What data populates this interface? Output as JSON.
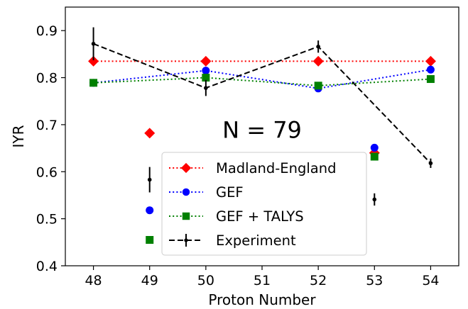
{
  "chart_data": {
    "type": "scatter",
    "xlabel": "Proton Number",
    "ylabel": "IYR",
    "ylim": [
      0.4,
      0.95
    ],
    "x_categories": [
      "48",
      "49",
      "50",
      "51",
      "52",
      "53",
      "54"
    ],
    "y_ticks": [
      "0.4",
      "0.5",
      "0.6",
      "0.7",
      "0.8",
      "0.9"
    ],
    "annotation": "N = 79",
    "grid": false,
    "legend_position": "lower-center",
    "series": [
      {
        "name": "Madland-England",
        "color": "#ff0000",
        "marker": "diamond",
        "line": "dotted",
        "line_x": [
          48,
          50,
          52,
          54
        ],
        "line_y": [
          0.835,
          0.835,
          0.835,
          0.835
        ],
        "points": [
          {
            "x": 48,
            "y": 0.835
          },
          {
            "x": 49,
            "y": 0.682
          },
          {
            "x": 50,
            "y": 0.835
          },
          {
            "x": 52,
            "y": 0.835
          },
          {
            "x": 53,
            "y": 0.64
          },
          {
            "x": 54,
            "y": 0.835
          }
        ]
      },
      {
        "name": "GEF",
        "color": "#0000ff",
        "marker": "circle",
        "line": "dotted",
        "line_x": [
          48,
          50,
          52,
          54
        ],
        "line_y": [
          0.789,
          0.815,
          0.777,
          0.817
        ],
        "points": [
          {
            "x": 48,
            "y": 0.789
          },
          {
            "x": 49,
            "y": 0.518
          },
          {
            "x": 50,
            "y": 0.815
          },
          {
            "x": 52,
            "y": 0.777
          },
          {
            "x": 53,
            "y": 0.651
          },
          {
            "x": 54,
            "y": 0.817
          }
        ]
      },
      {
        "name": "GEF + TALYS",
        "color": "#008000",
        "marker": "square",
        "line": "dotted",
        "line_x": [
          48,
          50,
          52,
          54
        ],
        "line_y": [
          0.789,
          0.8,
          0.783,
          0.797
        ],
        "points": [
          {
            "x": 48,
            "y": 0.789
          },
          {
            "x": 49,
            "y": 0.455
          },
          {
            "x": 50,
            "y": 0.8
          },
          {
            "x": 52,
            "y": 0.783
          },
          {
            "x": 53,
            "y": 0.632
          },
          {
            "x": 54,
            "y": 0.797
          }
        ]
      },
      {
        "name": "Experiment",
        "color": "#000000",
        "marker": "point",
        "line": "dashed",
        "line_x": [
          48,
          50,
          52,
          54
        ],
        "line_y": [
          0.872,
          0.778,
          0.866,
          0.618
        ],
        "points": [
          {
            "x": 48,
            "y": 0.872,
            "err": 0.035
          },
          {
            "x": 49,
            "y": 0.583,
            "err": 0.027
          },
          {
            "x": 50,
            "y": 0.778,
            "err": 0.017
          },
          {
            "x": 52,
            "y": 0.866,
            "err": 0.013
          },
          {
            "x": 53,
            "y": 0.541,
            "err": 0.013
          },
          {
            "x": 54,
            "y": 0.618,
            "err": 0.01
          }
        ]
      }
    ]
  }
}
